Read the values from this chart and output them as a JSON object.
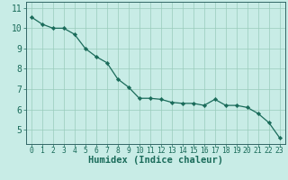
{
  "title": "",
  "xlabel": "Humidex (Indice chaleur)",
  "ylabel": "",
  "x_values": [
    0,
    1,
    2,
    3,
    4,
    5,
    6,
    7,
    8,
    9,
    10,
    11,
    12,
    13,
    14,
    15,
    16,
    17,
    18,
    19,
    20,
    21,
    22,
    23
  ],
  "y_values": [
    10.55,
    10.2,
    10.0,
    10.0,
    9.7,
    9.0,
    8.6,
    8.3,
    7.5,
    7.1,
    6.55,
    6.55,
    6.5,
    6.35,
    6.3,
    6.3,
    6.2,
    6.5,
    6.2,
    6.2,
    6.1,
    5.8,
    5.35,
    4.6
  ],
  "line_color": "#1a6b5a",
  "marker_color": "#1a6b5a",
  "background_color": "#c8ece6",
  "grid_color": "#99ccbb",
  "axis_color": "#336666",
  "ylim": [
    4.3,
    11.3
  ],
  "yticks": [
    5,
    6,
    7,
    8,
    9,
    10,
    11
  ],
  "xlim": [
    -0.5,
    23.5
  ],
  "tick_label_color": "#1a6b5a",
  "label_color": "#1a6b5a",
  "label_fontsize": 7.5,
  "tick_fontsize": 7,
  "xtick_fontsize": 5.8
}
